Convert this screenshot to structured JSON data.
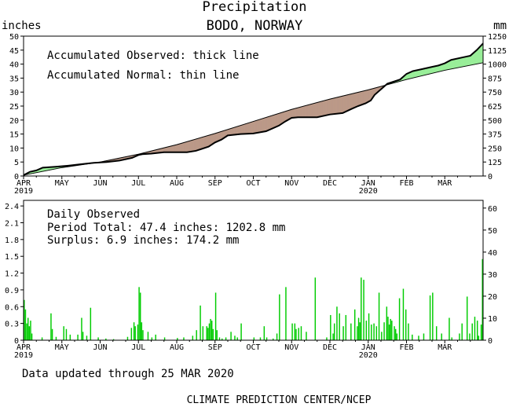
{
  "page": {
    "title": "Precipitation",
    "location": "BODO, NORWAY",
    "updated": "Data updated through 25 MAR 2020",
    "footer": "CLIMATE PREDICTION CENTER/NCEP"
  },
  "colors": {
    "surplus_fill": "#99ee99",
    "deficit_fill": "#bb9988",
    "daily_bar": "#00cc00",
    "axis": "#000000"
  },
  "chart_data": [
    {
      "type": "area",
      "y_label_left": "inches",
      "y_label_right": "mm",
      "legend": [
        "Accumulated Observed: thick line",
        "Accumulated Normal: thin line"
      ],
      "x_ticks": [
        "APR",
        "MAY",
        "JUN",
        "JUL",
        "AUG",
        "SEP",
        "OCT",
        "NOV",
        "DEC",
        "JAN",
        "FEB",
        "MAR"
      ],
      "x_year_labels": {
        "APR": "2019",
        "JAN": "2020"
      },
      "y_ticks_left": [
        0,
        5,
        10,
        15,
        20,
        25,
        30,
        35,
        40,
        45,
        50
      ],
      "y_ticks_right": [
        0,
        125,
        250,
        375,
        500,
        625,
        750,
        875,
        1000,
        1125,
        1250
      ],
      "ylim": [
        0,
        50
      ],
      "x_days": 360,
      "observed": {
        "x": [
          0,
          5,
          10,
          15,
          25,
          35,
          45,
          55,
          65,
          75,
          85,
          90,
          93,
          100,
          110,
          120,
          128,
          135,
          145,
          150,
          155,
          160,
          170,
          180,
          190,
          200,
          205,
          210,
          215,
          220,
          225,
          230,
          240,
          250,
          257,
          262,
          268,
          272,
          275,
          285,
          295,
          300,
          305,
          310,
          320,
          325,
          330,
          335,
          345,
          350,
          355,
          360
        ],
        "y": [
          0.3,
          1.5,
          2.0,
          3.0,
          3.3,
          3.7,
          4.2,
          4.7,
          5.0,
          5.5,
          6.5,
          7.5,
          7.8,
          8.0,
          8.5,
          8.5,
          8.5,
          9.0,
          10.5,
          12.0,
          13.0,
          14.5,
          15.0,
          15.2,
          16.0,
          18.0,
          19.5,
          20.8,
          21.0,
          21.0,
          21.0,
          21.0,
          22.0,
          22.5,
          24.0,
          25.0,
          26.0,
          27.0,
          29.0,
          33.0,
          34.5,
          36.5,
          37.5,
          38.0,
          39.0,
          39.5,
          40.3,
          41.5,
          42.5,
          43.0,
          45.0,
          47.4
        ]
      },
      "normal": {
        "x": [
          0,
          30,
          60,
          90,
          120,
          150,
          180,
          210,
          240,
          270,
          300,
          330,
          360
        ],
        "y": [
          0.3,
          3.0,
          5.0,
          7.8,
          11.2,
          15.2,
          19.5,
          23.8,
          27.5,
          30.8,
          34.5,
          37.8,
          40.5
        ]
      }
    },
    {
      "type": "bar",
      "title": "Daily Observed",
      "total_label": "Period Total:    47.4 inches:  1202.8 mm",
      "surplus_label": "Surplus:     6.9 inches:  174.2 mm",
      "x_ticks": [
        "APR",
        "MAY",
        "JUN",
        "JUL",
        "AUG",
        "SEP",
        "OCT",
        "NOV",
        "DEC",
        "JAN",
        "FEB",
        "MAR"
      ],
      "x_year_labels": {
        "APR": "2019",
        "JAN": "2020"
      },
      "y_ticks_left": [
        0,
        0.3,
        0.6,
        0.9,
        1.2,
        1.5,
        1.8,
        2.1,
        2.4
      ],
      "y_ticks_right": [
        0,
        10,
        20,
        30,
        40,
        50,
        60
      ],
      "ylim": [
        0,
        2.5
      ],
      "x_days": 360,
      "bars": {
        "day": [
          0,
          1,
          2,
          3,
          4,
          5,
          6,
          14,
          21,
          22,
          25,
          31,
          33,
          36,
          42,
          45,
          46,
          49,
          52,
          58,
          64,
          70,
          81,
          84,
          86,
          87,
          89,
          90,
          91,
          92,
          93,
          97,
          100,
          103,
          110,
          120,
          125,
          132,
          135,
          138,
          140,
          143,
          144,
          145,
          146,
          147,
          148,
          150,
          151,
          153,
          155,
          158,
          162,
          165,
          167,
          170,
          180,
          185,
          188,
          190,
          195,
          198,
          200,
          205,
          210,
          212,
          213,
          215,
          217,
          221,
          228,
          237,
          240,
          242,
          243,
          245,
          247,
          250,
          252,
          256,
          259,
          261,
          262,
          263,
          264,
          266,
          268,
          270,
          272,
          274,
          276,
          278,
          280,
          282,
          284,
          285,
          286,
          287,
          288,
          290,
          291,
          292,
          294,
          297,
          299,
          301,
          304,
          309,
          313,
          318,
          320,
          323,
          327,
          333,
          335,
          341,
          343,
          347,
          349,
          351,
          353,
          355,
          356,
          358,
          359
        ],
        "value": [
          0.72,
          0.55,
          0.3,
          0.4,
          0.25,
          0.35,
          0.12,
          0.05,
          0.48,
          0.2,
          0.06,
          0.25,
          0.2,
          0.1,
          0.1,
          0.4,
          0.15,
          0.08,
          0.58,
          0.05,
          0.03,
          0.02,
          0.06,
          0.22,
          0.32,
          0.25,
          0.28,
          0.95,
          0.85,
          0.32,
          0.18,
          0.15,
          0.05,
          0.1,
          0.05,
          0.04,
          0.05,
          0.08,
          0.18,
          0.62,
          0.25,
          0.25,
          0.22,
          0.3,
          0.38,
          0.35,
          0.2,
          0.85,
          0.18,
          0.05,
          0.03,
          0.05,
          0.15,
          0.08,
          0.05,
          0.3,
          0.05,
          0.05,
          0.25,
          0.05,
          0.03,
          0.12,
          0.82,
          0.95,
          0.3,
          0.3,
          0.2,
          0.22,
          0.25,
          0.15,
          1.12,
          0.05,
          0.45,
          0.12,
          0.3,
          0.6,
          0.48,
          0.25,
          0.45,
          0.3,
          0.55,
          0.25,
          0.4,
          0.32,
          1.12,
          1.08,
          0.35,
          0.48,
          0.28,
          0.3,
          0.25,
          0.85,
          0.15,
          0.32,
          0.6,
          0.42,
          0.28,
          0.38,
          0.35,
          0.25,
          0.2,
          0.12,
          0.75,
          0.92,
          0.55,
          0.3,
          0.1,
          0.08,
          0.12,
          0.8,
          0.85,
          0.25,
          0.12,
          0.4,
          0.05,
          0.12,
          0.3,
          0.78,
          0.12,
          0.3,
          0.42,
          0.35,
          0.08,
          0.28,
          1.45
        ]
      }
    }
  ]
}
